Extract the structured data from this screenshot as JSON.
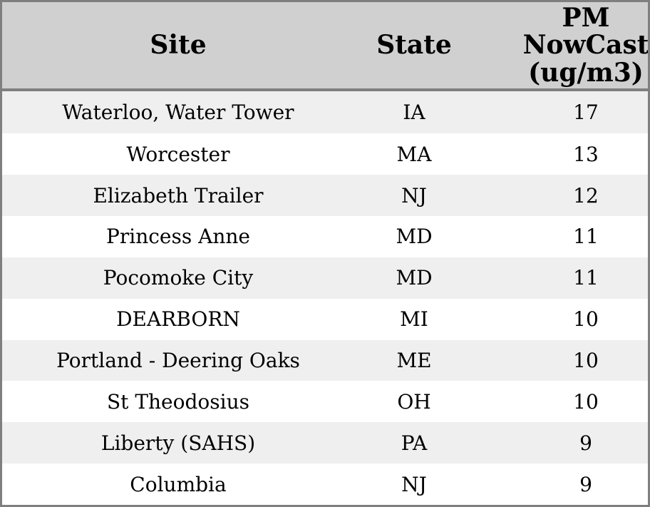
{
  "colors": {
    "outer_border": "#7f7f7f",
    "header_bg": "#d0d0d0",
    "header_divider": "#7f7f7f",
    "row_odd_bg": "#efefef",
    "row_even_bg": "#ffffff",
    "text": "#000000"
  },
  "table": {
    "columns": [
      "Site",
      "State",
      "PM NowCast (ug/m3)"
    ],
    "rows": [
      [
        "Waterloo, Water Tower",
        "IA",
        "17"
      ],
      [
        "Worcester",
        "MA",
        "13"
      ],
      [
        "Elizabeth Trailer",
        "NJ",
        "12"
      ],
      [
        "Princess Anne",
        "MD",
        "11"
      ],
      [
        "Pocomoke City",
        "MD",
        "11"
      ],
      [
        "DEARBORN",
        "MI",
        "10"
      ],
      [
        "Portland - Deering Oaks",
        "ME",
        "10"
      ],
      [
        "St Theodosius",
        "OH",
        "10"
      ],
      [
        "Liberty (SAHS)",
        "PA",
        "9"
      ],
      [
        "Columbia",
        "NJ",
        "9"
      ]
    ]
  },
  "chart_data": {
    "type": "table",
    "columns": [
      "Site",
      "State",
      "PM NowCast (ug/m3)"
    ],
    "rows": [
      {
        "site": "Waterloo, Water Tower",
        "state": "IA",
        "pm_nowcast_ugm3": 17
      },
      {
        "site": "Worcester",
        "state": "MA",
        "pm_nowcast_ugm3": 13
      },
      {
        "site": "Elizabeth Trailer",
        "state": "NJ",
        "pm_nowcast_ugm3": 12
      },
      {
        "site": "Princess Anne",
        "state": "MD",
        "pm_nowcast_ugm3": 11
      },
      {
        "site": "Pocomoke City",
        "state": "MD",
        "pm_nowcast_ugm3": 11
      },
      {
        "site": "DEARBORN",
        "state": "MI",
        "pm_nowcast_ugm3": 10
      },
      {
        "site": "Portland - Deering Oaks",
        "state": "ME",
        "pm_nowcast_ugm3": 10
      },
      {
        "site": "St Theodosius",
        "state": "OH",
        "pm_nowcast_ugm3": 10
      },
      {
        "site": "Liberty (SAHS)",
        "state": "PA",
        "pm_nowcast_ugm3": 9
      },
      {
        "site": "Columbia",
        "state": "NJ",
        "pm_nowcast_ugm3": 9
      }
    ],
    "layout": {
      "header_position": "top",
      "alignment": "center",
      "striped_rows": true,
      "grid": false
    }
  }
}
